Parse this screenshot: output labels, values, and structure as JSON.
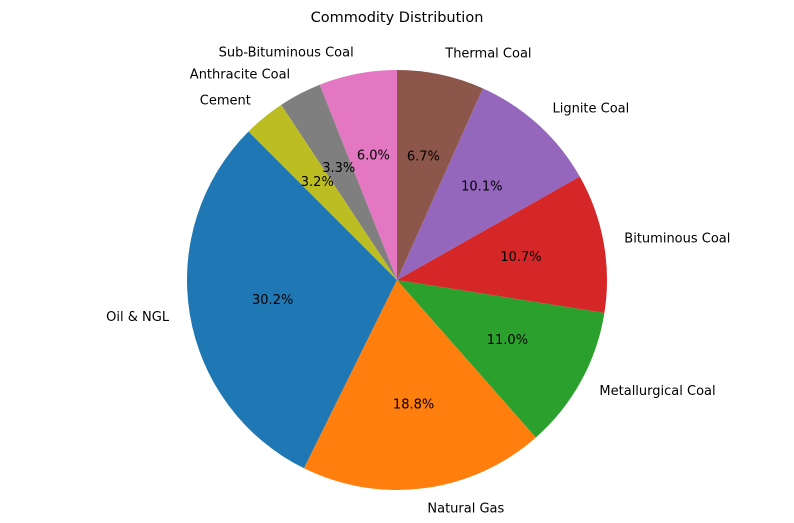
{
  "chart_data": {
    "type": "pie",
    "title": "Commodity Distribution",
    "start_angle_deg": 135,
    "direction": "counterclockwise",
    "slices": [
      {
        "label": "Oil & NGL",
        "value": 30.2,
        "pct_label": "30.2%",
        "color": "#1f77b4"
      },
      {
        "label": "Natural Gas",
        "value": 18.8,
        "pct_label": "18.8%",
        "color": "#ff7f0e"
      },
      {
        "label": "Metallurgical Coal",
        "value": 11.0,
        "pct_label": "11.0%",
        "color": "#2ca02c"
      },
      {
        "label": "Bituminous Coal",
        "value": 10.7,
        "pct_label": "10.7%",
        "color": "#d62728"
      },
      {
        "label": "Lignite Coal",
        "value": 10.1,
        "pct_label": "10.1%",
        "color": "#9467bd"
      },
      {
        "label": "Thermal Coal",
        "value": 6.7,
        "pct_label": "6.7%",
        "color": "#8c564b"
      },
      {
        "label": "Sub-Bituminous Coal",
        "value": 6.0,
        "pct_label": "6.0%",
        "color": "#e377c2"
      },
      {
        "label": "Anthracite Coal",
        "value": 3.3,
        "pct_label": "3.3%",
        "color": "#7f7f7f"
      },
      {
        "label": "Cement",
        "value": 3.2,
        "pct_label": "3.2%",
        "color": "#bcbd22"
      }
    ]
  }
}
